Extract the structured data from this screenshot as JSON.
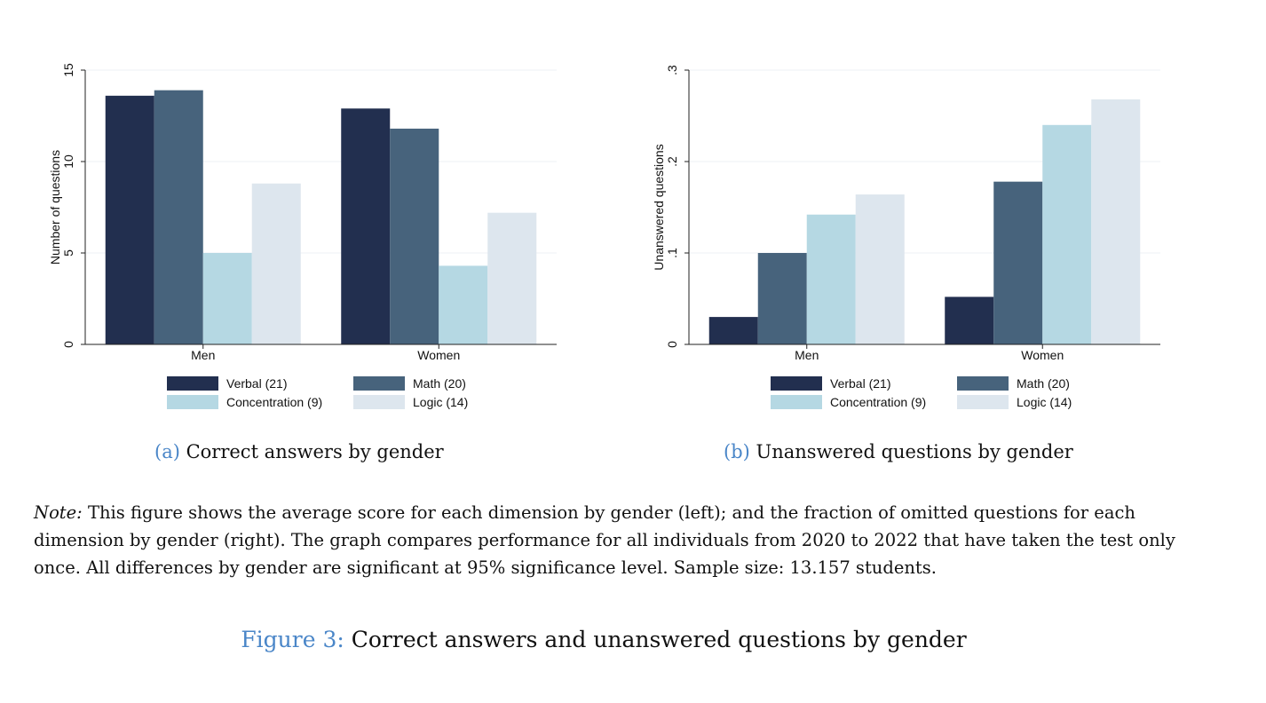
{
  "chart_data": [
    {
      "type": "bar",
      "categories": [
        "Men",
        "Women"
      ],
      "series": [
        {
          "name": "Verbal (21)",
          "values": [
            13.6,
            12.9
          ]
        },
        {
          "name": "Math (20)",
          "values": [
            13.9,
            11.8
          ]
        },
        {
          "name": "Concentration (9)",
          "values": [
            5.0,
            4.3
          ]
        },
        {
          "name": "Logic (14)",
          "values": [
            8.8,
            7.2
          ]
        }
      ],
      "ylabel": "Number of questions",
      "ylim": [
        0,
        15
      ],
      "yticks": [
        "0",
        "5",
        "10",
        "15"
      ],
      "ytick_values": [
        0,
        5,
        10,
        15
      ],
      "grid": true,
      "legend": "bottom",
      "caption_label": "(a)",
      "caption_text": "Correct answers by gender"
    },
    {
      "type": "bar",
      "categories": [
        "Men",
        "Women"
      ],
      "series": [
        {
          "name": "Verbal (21)",
          "values": [
            0.03,
            0.052
          ]
        },
        {
          "name": "Math (20)",
          "values": [
            0.1,
            0.178
          ]
        },
        {
          "name": "Concentration (9)",
          "values": [
            0.142,
            0.24
          ]
        },
        {
          "name": "Logic (14)",
          "values": [
            0.164,
            0.268
          ]
        }
      ],
      "ylabel": "Unanswered questions",
      "ylim": [
        0,
        0.3
      ],
      "yticks": [
        "0",
        ".1",
        ".2",
        ".3"
      ],
      "ytick_values": [
        0,
        0.1,
        0.2,
        0.3
      ],
      "grid": true,
      "legend": "bottom",
      "caption_label": "(b)",
      "caption_text": "Unanswered questions by gender"
    }
  ],
  "colors": {
    "series": [
      "#222f4f",
      "#47637c",
      "#b5d8e3",
      "#dde6ee"
    ],
    "caption_label": "#4a86c8",
    "grid": "#eef1f4"
  },
  "note": {
    "prefix": "Note:",
    "text": "This figure shows the average score for each dimension by gender (left); and the fraction of omitted questions for each dimension by gender (right). The graph compares performance for all individuals from 2020 to 2022 that have taken the test only once. All differences by gender are significant at 95% significance level. Sample size: 13.157 students."
  },
  "figure_caption": {
    "label": "Figure 3:",
    "text": "Correct answers and unanswered questions by gender"
  }
}
